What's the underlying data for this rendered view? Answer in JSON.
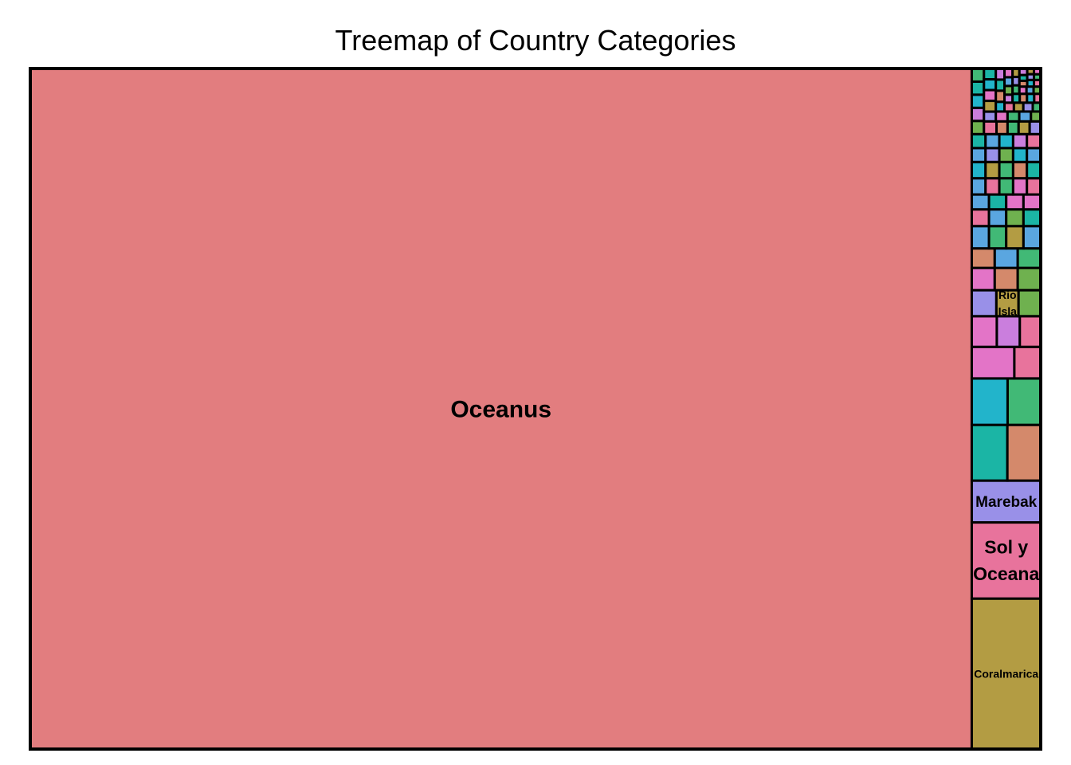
{
  "chart_data": {
    "type": "treemap",
    "title": "Treemap of Country Categories",
    "palette": [
      "#E27D7F",
      "#D4896B",
      "#B39C43",
      "#6FB14F",
      "#41B976",
      "#1BB5A5",
      "#22B4CB",
      "#5AA6E0",
      "#9990E8",
      "#CA7EDD",
      "#E374C7",
      "#E8739C"
    ],
    "items": [
      {
        "name": "Oceanus",
        "value": 1000,
        "color": "#E27D7F",
        "label_size": 30
      },
      {
        "name": "Coralmarica",
        "value": 16.2,
        "color": "#B39C43",
        "label_size": 14
      },
      {
        "name": "Sol y Oceana",
        "value": 8.2,
        "color": "#E8739C",
        "label_size": 23,
        "label_lines": [
          "Sol y",
          "Oceana"
        ]
      },
      {
        "name": "Marebak",
        "value": 4.5,
        "color": "#9990E8",
        "label_size": 19
      },
      {
        "name": "",
        "value": 2.9,
        "color": "#D4896B"
      },
      {
        "name": "",
        "value": 3.1,
        "color": "#1BB5A5"
      },
      {
        "name": "",
        "value": 2.6,
        "color": "#22B4CB"
      },
      {
        "name": "",
        "value": 2.4,
        "color": "#41B976"
      },
      {
        "name": "",
        "value": 2.1,
        "color": "#E374C7"
      },
      {
        "name": "",
        "value": 1.1,
        "color": "#CA7EDD"
      },
      {
        "name": "Rio Isla",
        "value": 0.9,
        "color": "#B39C43",
        "label_size": 14,
        "label_lines": [
          "Rio",
          "Isla"
        ]
      },
      {
        "name": "",
        "value": 1.2,
        "color": "#E374C7"
      },
      {
        "name": "",
        "value": 1.3,
        "color": "#E8739C"
      },
      {
        "name": "",
        "value": 1.0,
        "color": "#E8739C"
      },
      {
        "name": "",
        "value": 1.0,
        "color": "#9990E8"
      },
      {
        "name": "",
        "value": 0.9,
        "color": "#6FB14F"
      },
      {
        "name": "",
        "value": 0.8,
        "color": "#E374C7"
      },
      {
        "name": "",
        "value": 0.8,
        "color": "#D4896B"
      },
      {
        "name": "",
        "value": 0.8,
        "color": "#6FB14F"
      },
      {
        "name": "",
        "value": 0.7,
        "color": "#D4896B"
      },
      {
        "name": "",
        "value": 0.7,
        "color": "#5AA6E0"
      },
      {
        "name": "",
        "value": 0.7,
        "color": "#41B976"
      },
      {
        "name": "",
        "value": 0.6,
        "color": "#5AA6E0"
      },
      {
        "name": "",
        "value": 0.6,
        "color": "#41B976"
      },
      {
        "name": "",
        "value": 0.6,
        "color": "#B39C43"
      },
      {
        "name": "",
        "value": 0.6,
        "color": "#5AA6E0"
      },
      {
        "name": "",
        "value": 0.45,
        "color": "#E8739C"
      },
      {
        "name": "",
        "value": 0.45,
        "color": "#5AA6E0"
      },
      {
        "name": "",
        "value": 0.45,
        "color": "#6FB14F"
      },
      {
        "name": "",
        "value": 0.45,
        "color": "#1BB5A5"
      },
      {
        "name": "",
        "value": 0.4,
        "color": "#5AA6E0"
      },
      {
        "name": "",
        "value": 0.4,
        "color": "#1BB5A5"
      },
      {
        "name": "",
        "value": 0.4,
        "color": "#E374C7"
      },
      {
        "name": "",
        "value": 0.4,
        "color": "#E374C7"
      },
      {
        "name": "",
        "value": 0.35,
        "color": "#5AA6E0"
      },
      {
        "name": "",
        "value": 0.35,
        "color": "#E8739C"
      },
      {
        "name": "",
        "value": 0.35,
        "color": "#41B976"
      },
      {
        "name": "",
        "value": 0.35,
        "color": "#E374C7"
      },
      {
        "name": "",
        "value": 0.35,
        "color": "#E8739C"
      },
      {
        "name": "",
        "value": 0.35,
        "color": "#22B4CB"
      },
      {
        "name": "",
        "value": 0.35,
        "color": "#B39C43"
      },
      {
        "name": "",
        "value": 0.35,
        "color": "#41B976"
      },
      {
        "name": "",
        "value": 0.35,
        "color": "#D4896B"
      },
      {
        "name": "",
        "value": 0.35,
        "color": "#1BB5A5"
      },
      {
        "name": "",
        "value": 0.3,
        "color": "#5AA6E0"
      },
      {
        "name": "",
        "value": 0.3,
        "color": "#9990E8"
      },
      {
        "name": "",
        "value": 0.3,
        "color": "#6FB14F"
      },
      {
        "name": "",
        "value": 0.3,
        "color": "#22B4CB"
      },
      {
        "name": "",
        "value": 0.3,
        "color": "#5AA6E0"
      },
      {
        "name": "",
        "value": 0.3,
        "color": "#1BB5A5"
      },
      {
        "name": "",
        "value": 0.3,
        "color": "#5AA6E0"
      },
      {
        "name": "",
        "value": 0.3,
        "color": "#22B4CB"
      },
      {
        "name": "",
        "value": 0.3,
        "color": "#CA7EDD"
      },
      {
        "name": "",
        "value": 0.3,
        "color": "#E8739C"
      },
      {
        "name": "",
        "value": 0.25,
        "color": "#41B976"
      },
      {
        "name": "",
        "value": 0.25,
        "color": "#1BB5A5"
      },
      {
        "name": "",
        "value": 0.25,
        "color": "#22B4CB"
      },
      {
        "name": "",
        "value": 0.25,
        "color": "#CA7EDD"
      },
      {
        "name": "",
        "value": 0.25,
        "color": "#6FB14F"
      },
      {
        "name": "",
        "value": 0.25,
        "color": "#E8739C"
      },
      {
        "name": "",
        "value": 0.22,
        "color": "#D4896B"
      },
      {
        "name": "",
        "value": 0.22,
        "color": "#41B976"
      },
      {
        "name": "",
        "value": 0.22,
        "color": "#B39C43"
      },
      {
        "name": "",
        "value": 0.22,
        "color": "#9990E8"
      },
      {
        "name": "",
        "value": 0.2,
        "color": "#1BB5A5"
      },
      {
        "name": "",
        "value": 0.2,
        "color": "#22B4CB"
      },
      {
        "name": "",
        "value": 0.2,
        "color": "#E374C7"
      },
      {
        "name": "",
        "value": 0.2,
        "color": "#B39C43"
      },
      {
        "name": "",
        "value": 0.18,
        "color": "#9990E8"
      },
      {
        "name": "",
        "value": 0.18,
        "color": "#E374C7"
      },
      {
        "name": "",
        "value": 0.18,
        "color": "#41B976"
      },
      {
        "name": "",
        "value": 0.18,
        "color": "#5AA6E0"
      },
      {
        "name": "",
        "value": 0.15,
        "color": "#6FB14F"
      },
      {
        "name": "",
        "value": 0.15,
        "color": "#CA7EDD"
      },
      {
        "name": "",
        "value": 0.15,
        "color": "#1BB5A5"
      },
      {
        "name": "",
        "value": 0.15,
        "color": "#D4896B"
      },
      {
        "name": "",
        "value": 0.13,
        "color": "#22B4CB"
      },
      {
        "name": "",
        "value": 0.13,
        "color": "#E8739C"
      },
      {
        "name": "",
        "value": 0.13,
        "color": "#B39C43"
      },
      {
        "name": "",
        "value": 0.13,
        "color": "#9990E8"
      },
      {
        "name": "",
        "value": 0.11,
        "color": "#41B976"
      },
      {
        "name": "",
        "value": 0.11,
        "color": "#E374C7"
      },
      {
        "name": "",
        "value": 0.11,
        "color": "#5AA6E0"
      },
      {
        "name": "",
        "value": 0.11,
        "color": "#6FB14F"
      },
      {
        "name": "",
        "value": 0.1,
        "color": "#CA7EDD"
      },
      {
        "name": "",
        "value": 0.1,
        "color": "#1BB5A5"
      },
      {
        "name": "",
        "value": 0.1,
        "color": "#D4896B"
      },
      {
        "name": "",
        "value": 0.1,
        "color": "#22B4CB"
      },
      {
        "name": "",
        "value": 0.09,
        "color": "#E8739C"
      },
      {
        "name": "",
        "value": 0.09,
        "color": "#B39C43"
      },
      {
        "name": "",
        "value": 0.09,
        "color": "#9990E8"
      },
      {
        "name": "",
        "value": 0.09,
        "color": "#41B976"
      },
      {
        "name": "",
        "value": 0.08,
        "color": "#E374C7"
      },
      {
        "name": "",
        "value": 0.08,
        "color": "#5AA6E0"
      },
      {
        "name": "",
        "value": 0.08,
        "color": "#6FB14F"
      },
      {
        "name": "",
        "value": 0.08,
        "color": "#CA7EDD"
      },
      {
        "name": "",
        "value": 0.07,
        "color": "#1BB5A5"
      },
      {
        "name": "",
        "value": 0.07,
        "color": "#D4896B"
      },
      {
        "name": "",
        "value": 0.07,
        "color": "#22B4CB"
      },
      {
        "name": "",
        "value": 0.07,
        "color": "#E8739C"
      },
      {
        "name": "",
        "value": 0.06,
        "color": "#B39C43"
      },
      {
        "name": "",
        "value": 0.06,
        "color": "#9990E8"
      },
      {
        "name": "",
        "value": 0.06,
        "color": "#41B976"
      },
      {
        "name": "",
        "value": 0.06,
        "color": "#E374C7"
      }
    ]
  }
}
